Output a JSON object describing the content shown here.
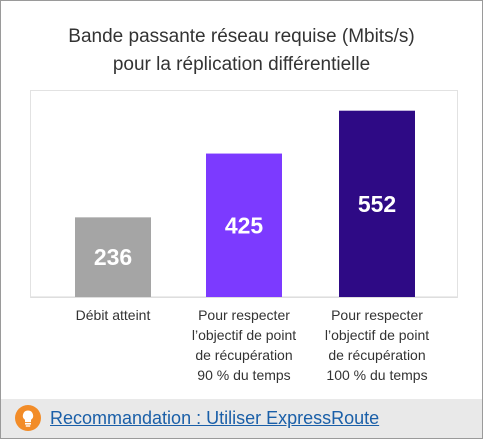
{
  "chart_data": {
    "type": "bar",
    "title": [
      "Bande passante réseau requise (Mbits/s)",
      "pour la réplication différentielle"
    ],
    "categories": [
      [
        "Débit atteint"
      ],
      [
        "Pour respecter",
        "l’objectif de point",
        "de récupération",
        "90 % du temps"
      ],
      [
        "Pour respecter",
        "l’objectif de point",
        "de récupération",
        "100 % du temps"
      ]
    ],
    "values": [
      236,
      425,
      552
    ],
    "data_labels": [
      "236",
      "425",
      "552"
    ],
    "colors": [
      "#a5a5a5",
      "#7c3aff",
      "#2e0a85"
    ],
    "ylim": [
      0,
      640
    ],
    "grid": false,
    "legend": "none"
  },
  "footer": {
    "icon": "lightbulb-icon",
    "icon_color": "#f28c28",
    "recommendation": "Recommandation : Utiliser ExpressRoute"
  }
}
